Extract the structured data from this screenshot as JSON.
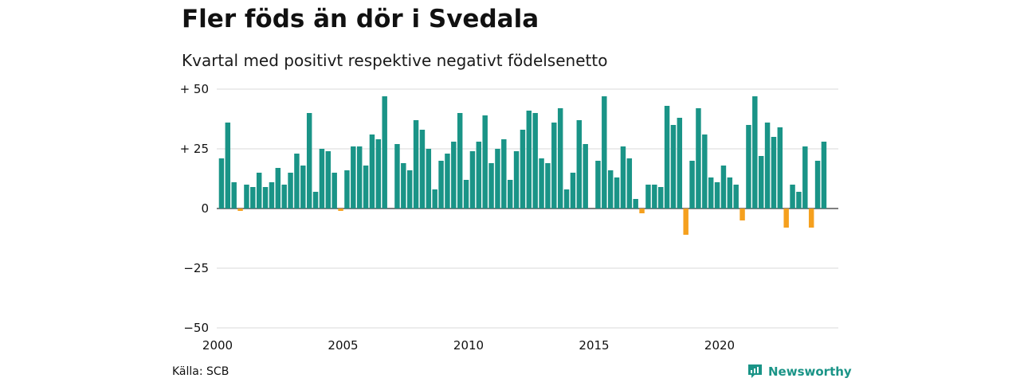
{
  "header": {
    "title": "Fler föds än dör i Svedala",
    "subtitle": "Kvartal med positivt respektive negativt födelsenetto"
  },
  "footer": {
    "source": "Källa: SCB",
    "brand": "Newsworthy",
    "brand_icon": "newsworthy-logo-icon"
  },
  "colors": {
    "positive": "#1a9487",
    "negative": "#f5a01e",
    "grid": "#d9d9d9",
    "zero": "#333333"
  },
  "chart_data": {
    "type": "bar",
    "title": "Fler föds än dör i Svedala",
    "subtitle": "Kvartal med positivt respektive negativt födelsenetto",
    "xlabel": "",
    "ylabel": "",
    "ylim": [
      -50,
      50
    ],
    "yticks": [
      50,
      25,
      0,
      -25,
      -50
    ],
    "ytick_labels": [
      "+ 50",
      "+ 25",
      "0",
      "−25",
      "−50"
    ],
    "xticks": [
      "2000",
      "2005",
      "2010",
      "2015",
      "2020"
    ],
    "start_year": 2000,
    "periods_per_year": 4,
    "grid": true,
    "values": [
      21,
      36,
      11,
      -1,
      10,
      9,
      15,
      9,
      11,
      17,
      10,
      15,
      23,
      18,
      40,
      7,
      25,
      24,
      15,
      -1,
      16,
      26,
      26,
      18,
      31,
      29,
      47,
      0,
      27,
      19,
      16,
      37,
      33,
      25,
      8,
      20,
      23,
      28,
      40,
      12,
      24,
      28,
      39,
      19,
      25,
      29,
      12,
      24,
      33,
      41,
      40,
      21,
      19,
      36,
      42,
      8,
      15,
      37,
      27,
      0,
      20,
      47,
      16,
      13,
      26,
      21,
      4,
      -2,
      10,
      10,
      9,
      43,
      35,
      38,
      -11,
      20,
      42,
      31,
      13,
      11,
      18,
      13,
      10,
      -5,
      35,
      47,
      22,
      36,
      30,
      34,
      -8,
      10,
      7,
      26,
      -8,
      20,
      28
    ]
  }
}
